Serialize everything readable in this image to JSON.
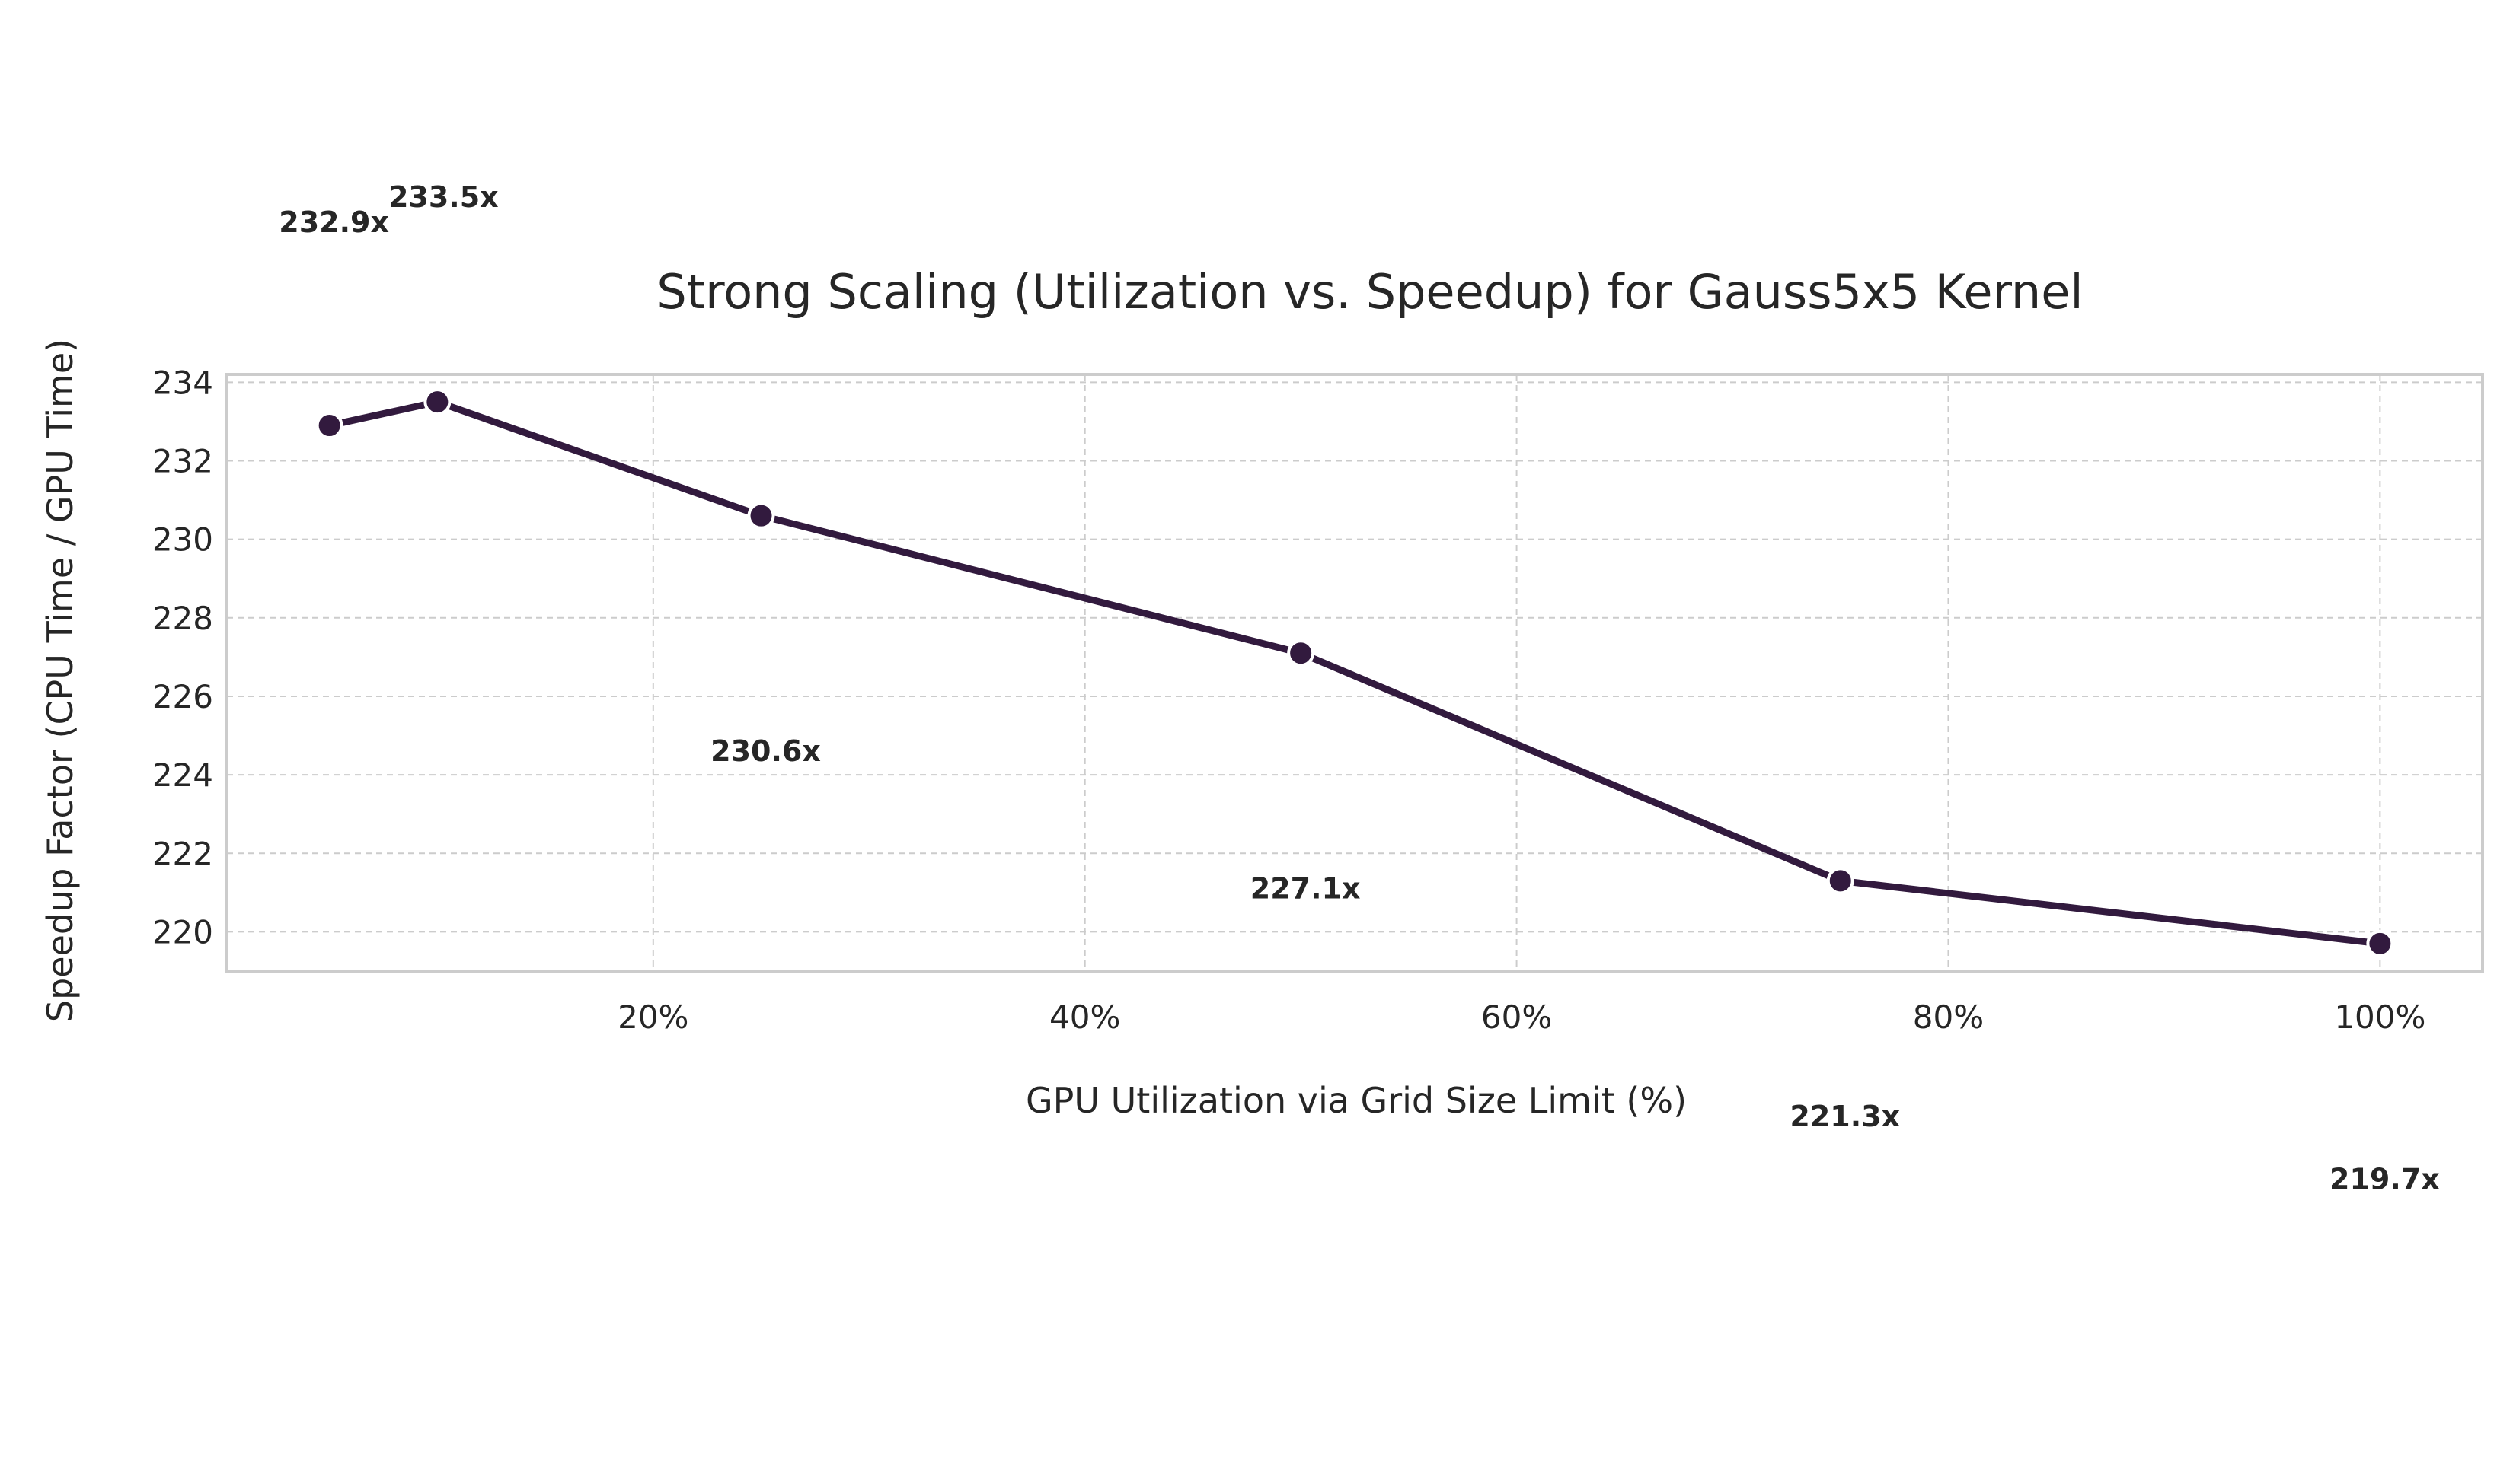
{
  "chart_data": {
    "type": "line",
    "title": "Strong Scaling (Utilization vs. Speedup) for Gauss5x5 Kernel",
    "xlabel": "GPU Utilization via Grid Size Limit (%)",
    "ylabel": "Speedup Factor (CPU Time / GPU Time)",
    "x": [
      5,
      10,
      25,
      50,
      75,
      100
    ],
    "series": [
      {
        "values": [
          232.9,
          233.5,
          230.6,
          227.1,
          221.3,
          219.7
        ],
        "color": "#321a3e"
      }
    ],
    "data_labels": [
      "232.9x",
      "233.5x",
      "230.6x",
      "227.1x",
      "221.3x",
      "219.7x"
    ],
    "xlim": [
      0.25,
      104.75
    ],
    "ylim": [
      219.0,
      234.2
    ],
    "x_ticks": [
      20,
      40,
      60,
      80,
      100
    ],
    "x_tick_labels": [
      "20%",
      "40%",
      "60%",
      "80%",
      "100%"
    ],
    "y_ticks": [
      220,
      222,
      224,
      226,
      228,
      230,
      232,
      234
    ],
    "y_tick_labels": [
      "220",
      "222",
      "224",
      "226",
      "228",
      "230",
      "232",
      "234"
    ],
    "grid": true,
    "colors": {
      "line": "#321a3e",
      "marker_edge": "#ffffff",
      "grid": "#cccccc",
      "frame": "#cccccc",
      "text": "#262626"
    }
  }
}
